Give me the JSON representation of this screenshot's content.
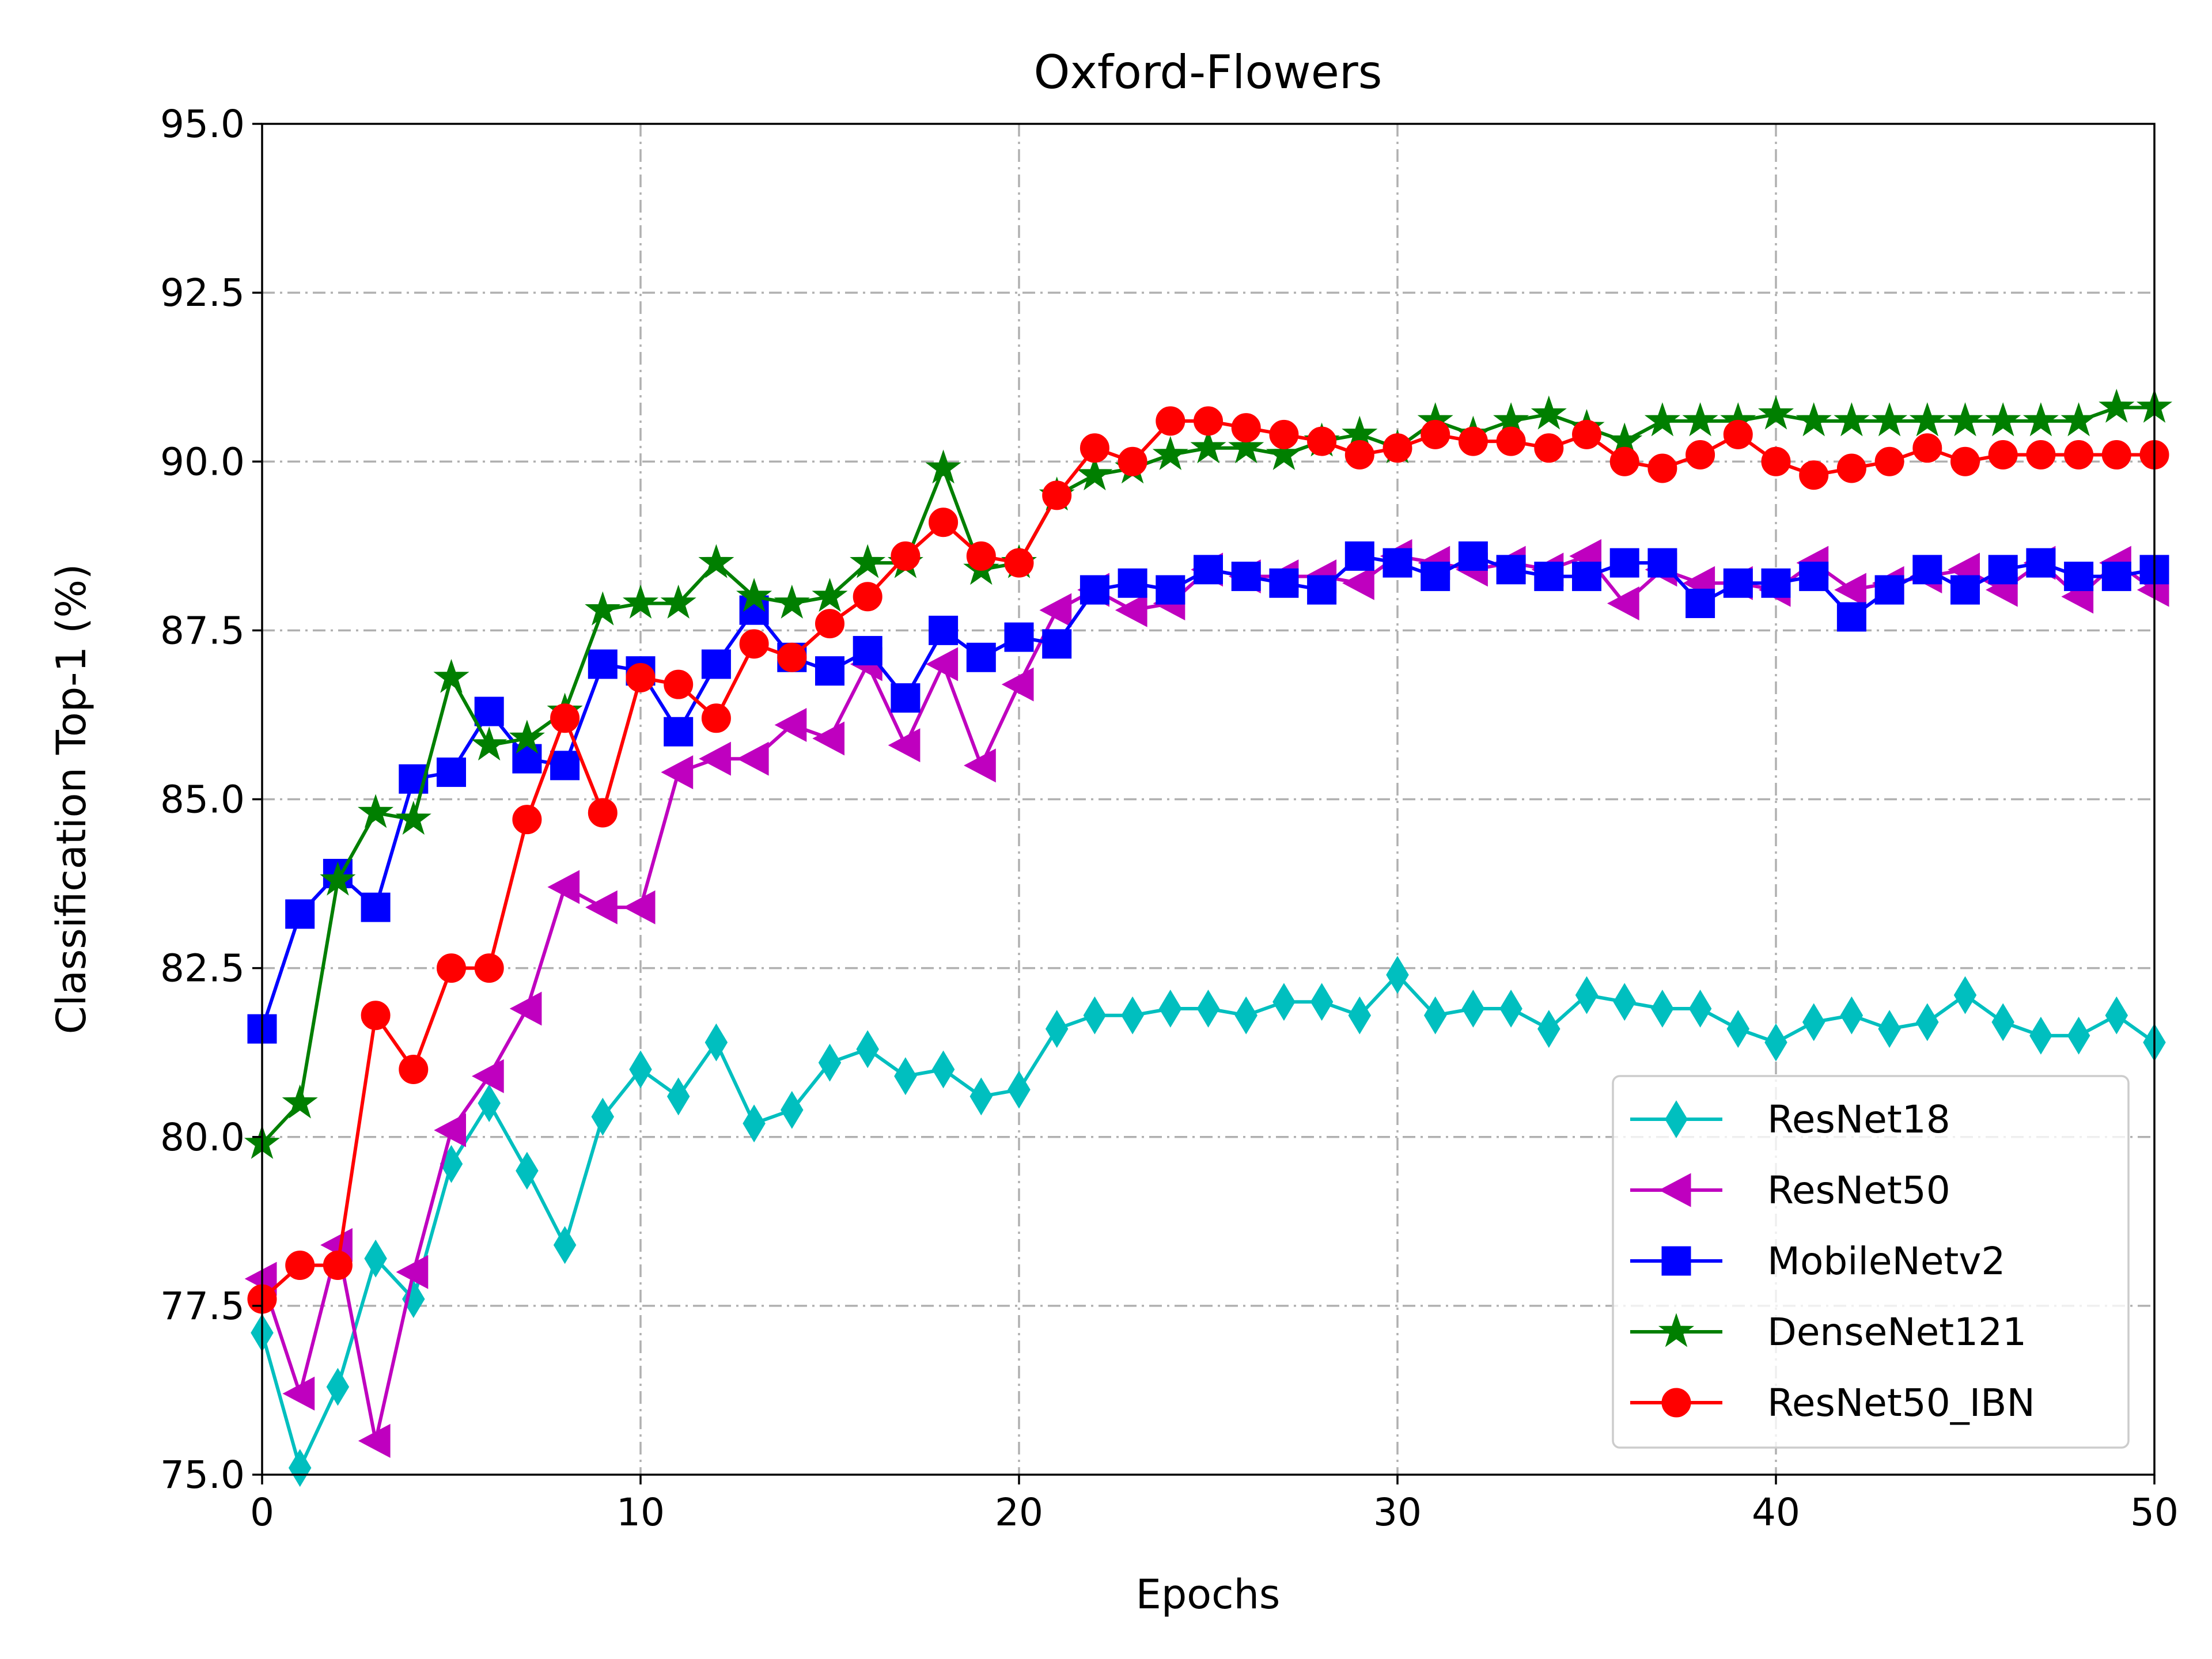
{
  "chart_data": {
    "type": "line",
    "title": "Oxford-Flowers",
    "xlabel": "Epochs",
    "ylabel": "Classification Top-1 (%)",
    "xlim": [
      0,
      50
    ],
    "ylim": [
      75.0,
      95.0
    ],
    "xticks": [
      0,
      10,
      20,
      30,
      40,
      50
    ],
    "xtick_labels": [
      "0",
      "10",
      "20",
      "30",
      "40",
      "50"
    ],
    "yticks": [
      75.0,
      77.5,
      80.0,
      82.5,
      85.0,
      87.5,
      90.0,
      92.5,
      95.0
    ],
    "ytick_labels": [
      "75.0",
      "77.5",
      "80.0",
      "82.5",
      "85.0",
      "87.5",
      "90.0",
      "92.5",
      "95.0"
    ],
    "grid": true,
    "legend_position": "lower-right",
    "x": [
      0,
      1,
      2,
      3,
      4,
      5,
      6,
      7,
      8,
      9,
      10,
      11,
      12,
      13,
      14,
      15,
      16,
      17,
      18,
      19,
      20,
      21,
      22,
      23,
      24,
      25,
      26,
      27,
      28,
      29,
      30,
      31,
      32,
      33,
      34,
      35,
      36,
      37,
      38,
      39,
      40,
      41,
      42,
      43,
      44,
      45,
      46,
      47,
      48,
      49,
      50
    ],
    "series": [
      {
        "name": "ResNet18",
        "color": "#00bfbf",
        "marker": "thin-diamond",
        "values": [
          77.1,
          75.1,
          76.3,
          78.2,
          77.6,
          79.6,
          80.5,
          79.5,
          78.4,
          80.3,
          81.0,
          80.6,
          81.4,
          80.2,
          80.4,
          81.1,
          81.3,
          80.9,
          81.0,
          80.6,
          80.7,
          81.6,
          81.8,
          81.8,
          81.9,
          81.9,
          81.8,
          82.0,
          82.0,
          81.8,
          82.4,
          81.8,
          81.9,
          81.9,
          81.6,
          82.1,
          82.0,
          81.9,
          81.9,
          81.6,
          81.4,
          81.7,
          81.8,
          81.6,
          81.7,
          82.1,
          81.7,
          81.5,
          81.5,
          81.8,
          81.4
        ]
      },
      {
        "name": "ResNet50",
        "color": "#bf00bf",
        "marker": "triangle-left",
        "values": [
          77.9,
          76.2,
          78.4,
          75.5,
          78.0,
          80.1,
          80.9,
          81.9,
          83.7,
          83.4,
          83.4,
          85.4,
          85.6,
          85.6,
          86.1,
          85.9,
          87.0,
          85.8,
          87.0,
          85.5,
          86.7,
          87.8,
          88.1,
          87.8,
          87.9,
          88.4,
          88.3,
          88.3,
          88.3,
          88.2,
          88.6,
          88.5,
          88.4,
          88.5,
          88.4,
          88.6,
          87.9,
          88.4,
          88.2,
          88.2,
          88.1,
          88.5,
          88.1,
          88.2,
          88.3,
          88.4,
          88.1,
          88.5,
          88.0,
          88.5,
          88.1
        ]
      },
      {
        "name": "MobileNetv2",
        "color": "#0000ff",
        "marker": "square",
        "values": [
          81.6,
          83.3,
          83.9,
          83.4,
          85.3,
          85.4,
          86.3,
          85.6,
          85.5,
          87.0,
          86.9,
          86.0,
          87.0,
          87.8,
          87.1,
          86.9,
          87.2,
          86.5,
          87.5,
          87.1,
          87.4,
          87.3,
          88.1,
          88.2,
          88.1,
          88.4,
          88.3,
          88.2,
          88.1,
          88.6,
          88.5,
          88.3,
          88.6,
          88.4,
          88.3,
          88.3,
          88.5,
          88.5,
          87.9,
          88.2,
          88.2,
          88.3,
          87.7,
          88.1,
          88.4,
          88.1,
          88.4,
          88.5,
          88.3,
          88.3,
          88.4
        ]
      },
      {
        "name": "DenseNet121",
        "color": "#007f00",
        "marker": "star",
        "values": [
          79.9,
          80.5,
          83.8,
          84.8,
          84.7,
          86.8,
          85.8,
          85.9,
          86.3,
          87.8,
          87.9,
          87.9,
          88.5,
          88.0,
          87.9,
          88.0,
          88.5,
          88.5,
          89.9,
          88.4,
          88.5,
          89.5,
          89.8,
          89.9,
          90.1,
          90.2,
          90.2,
          90.1,
          90.3,
          90.4,
          90.2,
          90.6,
          90.4,
          90.6,
          90.7,
          90.5,
          90.3,
          90.6,
          90.6,
          90.6,
          90.7,
          90.6,
          90.6,
          90.6,
          90.6,
          90.6,
          90.6,
          90.6,
          90.6,
          90.8,
          90.8
        ]
      },
      {
        "name": "ResNet50_IBN",
        "color": "#ff0000",
        "marker": "circle",
        "values": [
          77.6,
          78.1,
          78.1,
          81.8,
          81.0,
          82.5,
          82.5,
          84.7,
          86.2,
          84.8,
          86.8,
          86.7,
          86.2,
          87.3,
          87.1,
          87.6,
          88.0,
          88.6,
          89.1,
          88.6,
          88.5,
          89.5,
          90.2,
          90.0,
          90.6,
          90.6,
          90.5,
          90.4,
          90.3,
          90.1,
          90.2,
          90.4,
          90.3,
          90.3,
          90.2,
          90.4,
          90.0,
          89.9,
          90.1,
          90.4,
          90.0,
          89.8,
          89.9,
          90.0,
          90.2,
          90.0,
          90.1,
          90.1,
          90.1,
          90.1,
          90.1
        ]
      }
    ]
  }
}
